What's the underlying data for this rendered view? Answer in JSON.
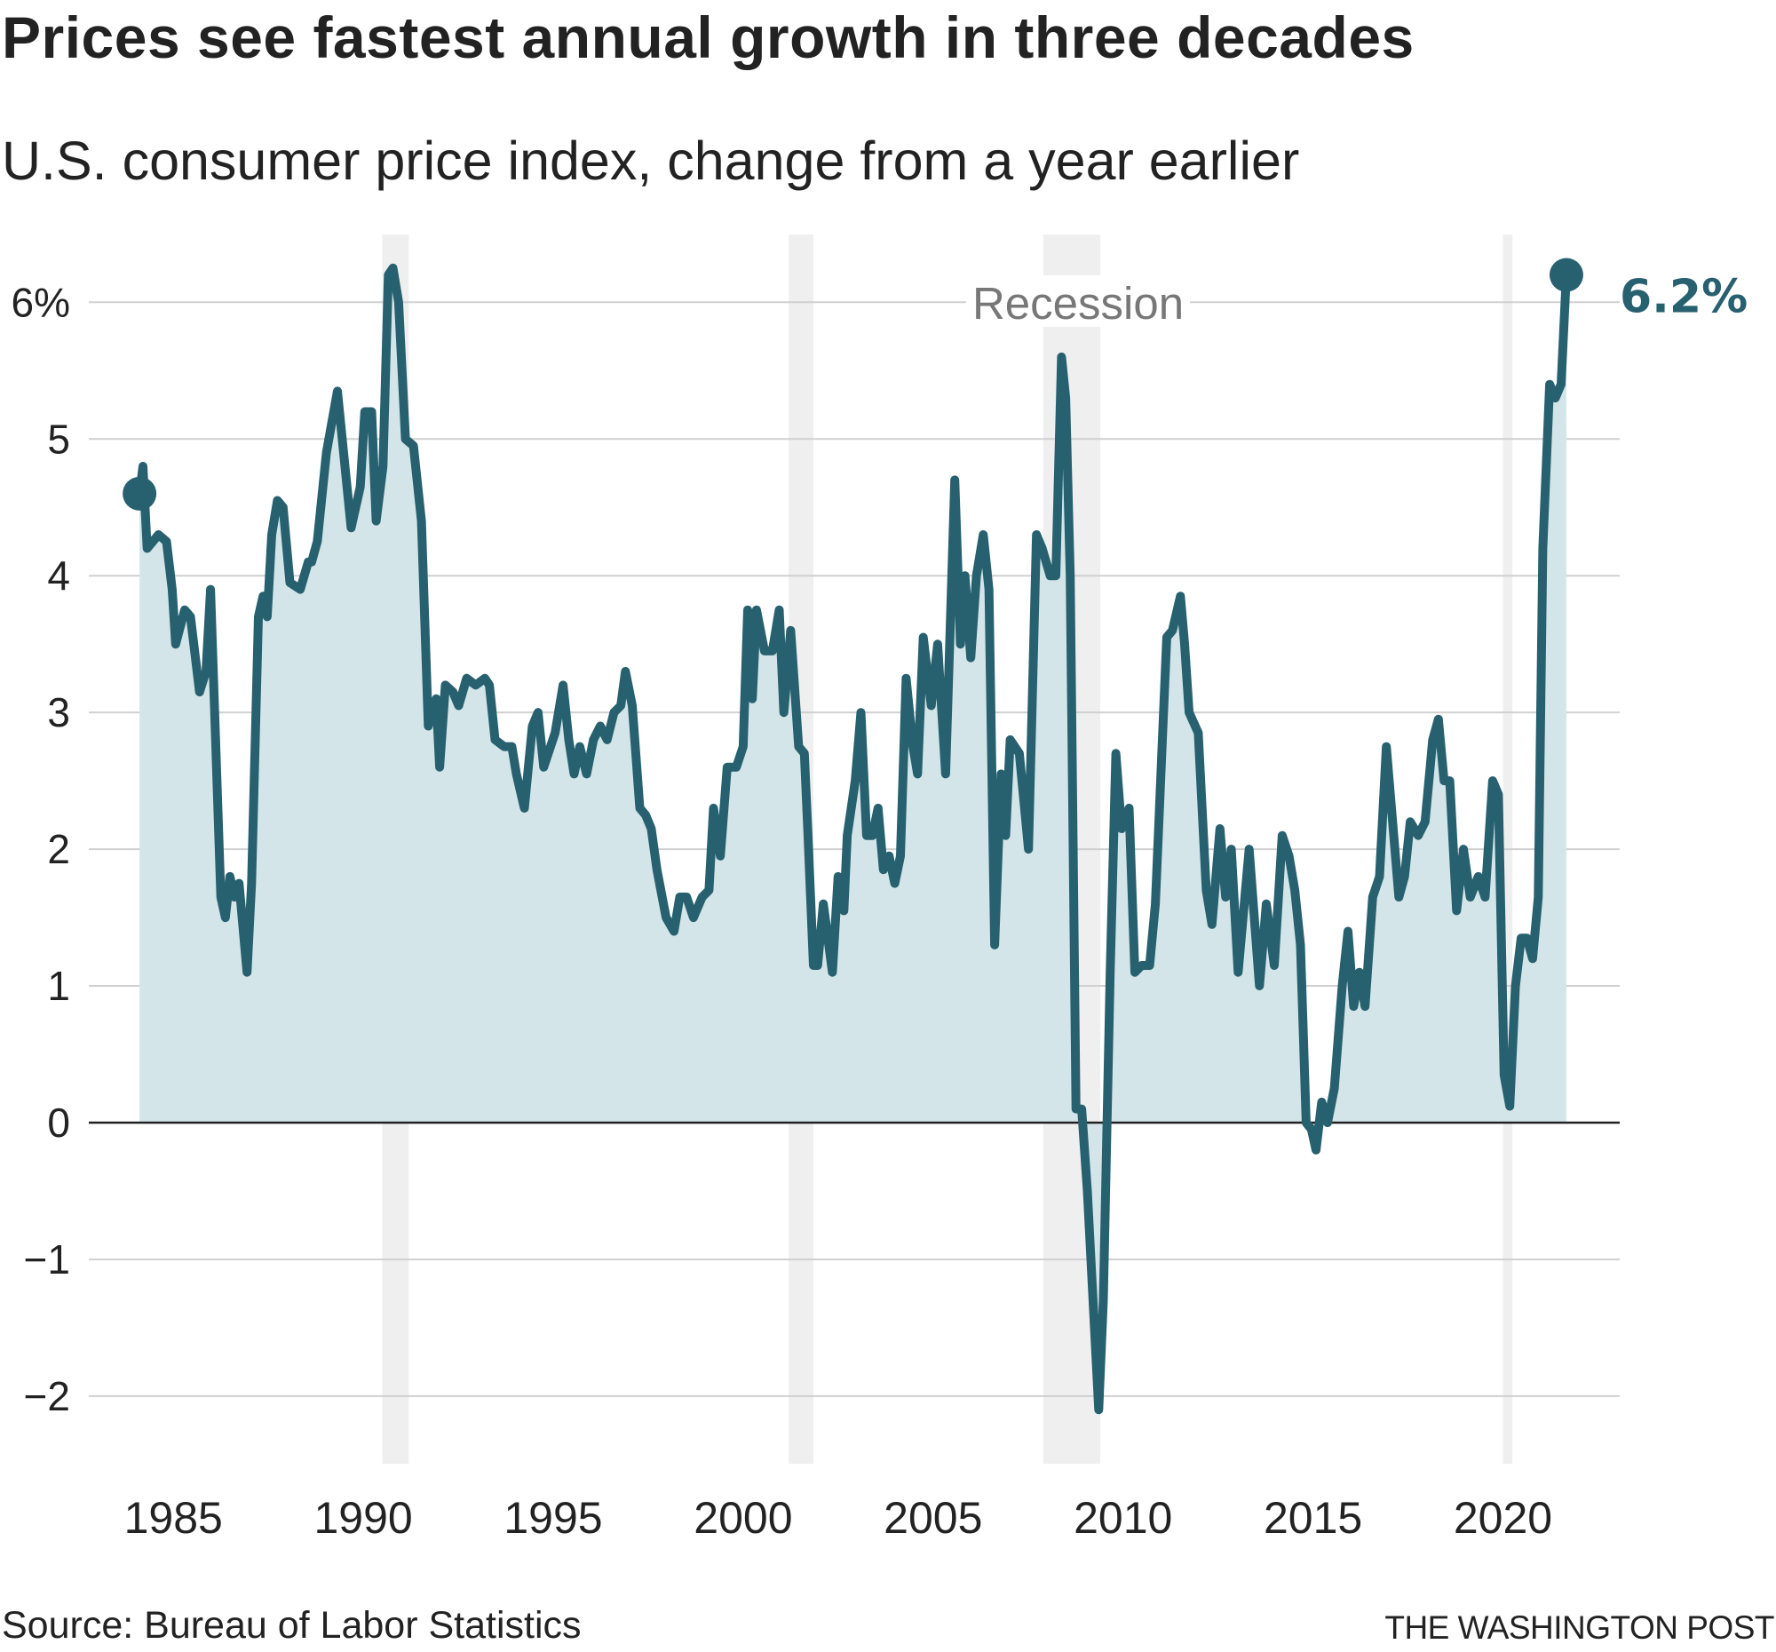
{
  "chart_data": {
    "type": "area",
    "title": "Prices see fastest annual growth in three decades",
    "subtitle": "U.S. consumer price index, change from a year earlier",
    "source": "Source: Bureau of Labor Statistics",
    "credit": "THE WASHINGTON POST",
    "xlim": [
      1984,
      2023
    ],
    "ylim": [
      -2.5,
      6.5
    ],
    "y_ticks": [
      {
        "value": 6,
        "label": "6%"
      },
      {
        "value": 5,
        "label": "5"
      },
      {
        "value": 4,
        "label": "4"
      },
      {
        "value": 3,
        "label": "3"
      },
      {
        "value": 2,
        "label": "2"
      },
      {
        "value": 1,
        "label": "1"
      },
      {
        "value": 0,
        "label": "0"
      },
      {
        "value": -1,
        "label": "−1"
      },
      {
        "value": -2,
        "label": "−2"
      }
    ],
    "x_ticks": [
      {
        "value": 1985,
        "label": "1985"
      },
      {
        "value": 1990,
        "label": "1990"
      },
      {
        "value": 1995,
        "label": "1995"
      },
      {
        "value": 2000,
        "label": "2000"
      },
      {
        "value": 2005,
        "label": "2005"
      },
      {
        "value": 2010,
        "label": "2010"
      },
      {
        "value": 2015,
        "label": "2015"
      },
      {
        "value": 2020,
        "label": "2020"
      }
    ],
    "grid": true,
    "recession_label": "Recession",
    "recessions": [
      [
        1990.5,
        1991.2
      ],
      [
        2001.2,
        2001.85
      ],
      [
        2007.9,
        2009.4
      ],
      [
        2020.0,
        2020.25
      ]
    ],
    "end_label": "6.2%",
    "colors": {
      "line": "#27606f",
      "fill": "#d3e5e8",
      "recession": "#efefef",
      "grid": "#d0d0d0",
      "zero": "#222222",
      "recession_text": "#777777"
    },
    "series": [
      {
        "x": [
          1984.11,
          1984.2,
          1984.31,
          1984.61,
          1984.82,
          1984.97,
          1985.06,
          1985.3,
          1985.45,
          1985.69,
          1985.86,
          1985.98,
          1986.25,
          1986.37,
          1986.49,
          1986.61,
          1986.73,
          1986.94,
          1987.06,
          1987.24,
          1987.36,
          1987.47,
          1987.59,
          1987.74,
          1987.89,
          1988.07,
          1988.34,
          1988.55,
          1988.64,
          1988.79,
          1989.03,
          1989.32,
          1989.68,
          1989.92,
          1990.04,
          1990.22,
          1990.34,
          1990.52,
          1990.66,
          1990.78,
          1990.93,
          1991.11,
          1991.32,
          1991.53,
          1991.71,
          1991.92,
          1992.01,
          1992.16,
          1992.36,
          1992.51,
          1992.72,
          1992.96,
          1993.2,
          1993.32,
          1993.47,
          1993.71,
          1993.91,
          1994.03,
          1994.24,
          1994.45,
          1994.6,
          1994.75,
          1995.05,
          1995.26,
          1995.41,
          1995.55,
          1995.7,
          1995.88,
          1996.06,
          1996.24,
          1996.42,
          1996.6,
          1996.78,
          1996.9,
          1997.08,
          1997.28,
          1997.43,
          1997.58,
          1997.73,
          1997.97,
          1998.18,
          1998.33,
          1998.51,
          1998.69,
          1998.92,
          1999.1,
          1999.22,
          1999.4,
          1999.58,
          1999.82,
          2000.0,
          2000.12,
          2000.24,
          2000.35,
          2000.56,
          2000.77,
          2000.95,
          2001.07,
          2001.25,
          2001.46,
          2001.61,
          2001.7,
          2001.85,
          2001.96,
          2002.11,
          2002.35,
          2002.5,
          2002.65,
          2002.74,
          2002.95,
          2003.1,
          2003.25,
          2003.4,
          2003.55,
          2003.69,
          2003.84,
          2003.99,
          2004.14,
          2004.29,
          2004.47,
          2004.59,
          2004.74,
          2004.95,
          2005.12,
          2005.33,
          2005.57,
          2005.72,
          2005.84,
          2005.99,
          2006.14,
          2006.32,
          2006.47,
          2006.62,
          2006.79,
          2006.91,
          2007.03,
          2007.27,
          2007.51,
          2007.72,
          2007.87,
          2008.08,
          2008.23,
          2008.38,
          2008.49,
          2008.61,
          2008.76,
          2008.91,
          2009.06,
          2009.21,
          2009.36,
          2009.48,
          2009.66,
          2009.81,
          2009.96,
          2010.16,
          2010.31,
          2010.49,
          2010.7,
          2010.85,
          2011.15,
          2011.3,
          2011.51,
          2011.62,
          2011.74,
          2011.98,
          2012.19,
          2012.34,
          2012.55,
          2012.7,
          2012.85,
          2013.03,
          2013.32,
          2013.59,
          2013.77,
          2013.98,
          2014.19,
          2014.37,
          2014.52,
          2014.67,
          2014.82,
          2014.96,
          2015.08,
          2015.23,
          2015.38,
          2015.56,
          2015.77,
          2015.92,
          2016.07,
          2016.22,
          2016.37,
          2016.57,
          2016.75,
          2016.93,
          2017.11,
          2017.26,
          2017.41,
          2017.56,
          2017.77,
          2017.95,
          2018.15,
          2018.3,
          2018.45,
          2018.6,
          2018.78,
          2018.96,
          2019.14,
          2019.35,
          2019.53,
          2019.73,
          2019.88,
          2020.03,
          2020.18,
          2020.33,
          2020.48,
          2020.63,
          2020.78,
          2020.93,
          2021.05,
          2021.23,
          2021.38,
          2021.53,
          2021.67
        ],
        "y": [
          4.6,
          4.8,
          4.2,
          4.3,
          4.25,
          3.9,
          3.5,
          3.75,
          3.7,
          3.15,
          3.3,
          3.9,
          1.65,
          1.5,
          1.8,
          1.65,
          1.75,
          1.1,
          1.75,
          3.7,
          3.85,
          3.7,
          4.3,
          4.55,
          4.5,
          3.95,
          3.9,
          4.1,
          4.1,
          4.25,
          4.9,
          5.35,
          4.35,
          4.65,
          5.2,
          5.2,
          4.4,
          4.8,
          6.2,
          6.25,
          6.0,
          5.0,
          4.95,
          4.4,
          2.9,
          3.1,
          2.6,
          3.2,
          3.15,
          3.05,
          3.25,
          3.2,
          3.25,
          3.2,
          2.8,
          2.75,
          2.75,
          2.55,
          2.3,
          2.9,
          3.0,
          2.6,
          2.85,
          3.2,
          2.8,
          2.55,
          2.75,
          2.55,
          2.8,
          2.9,
          2.8,
          3.0,
          3.05,
          3.3,
          3.05,
          2.3,
          2.25,
          2.15,
          1.85,
          1.5,
          1.4,
          1.65,
          1.65,
          1.5,
          1.65,
          1.7,
          2.3,
          1.95,
          2.6,
          2.6,
          2.75,
          3.75,
          3.1,
          3.75,
          3.45,
          3.45,
          3.75,
          3.0,
          3.6,
          2.75,
          2.7,
          2.15,
          1.15,
          1.15,
          1.6,
          1.1,
          1.8,
          1.55,
          2.1,
          2.5,
          3.0,
          2.1,
          2.1,
          2.3,
          1.85,
          1.95,
          1.75,
          1.95,
          3.25,
          2.75,
          2.55,
          3.55,
          3.05,
          3.5,
          2.55,
          4.7,
          3.5,
          4.0,
          3.4,
          4.0,
          4.3,
          3.9,
          1.3,
          2.55,
          2.1,
          2.8,
          2.7,
          2.0,
          4.3,
          4.2,
          4.0,
          4.0,
          5.6,
          5.3,
          4.0,
          0.1,
          0.1,
          -0.5,
          -1.3,
          -2.1,
          -1.3,
          1.1,
          2.7,
          2.15,
          2.3,
          1.1,
          1.15,
          1.15,
          1.6,
          3.55,
          3.6,
          3.85,
          3.5,
          3.0,
          2.85,
          1.7,
          1.45,
          2.15,
          1.65,
          2.0,
          1.1,
          2.0,
          1.0,
          1.6,
          1.15,
          2.1,
          1.95,
          1.7,
          1.3,
          0.0,
          -0.05,
          -0.2,
          0.15,
          0.0,
          0.25,
          1.0,
          1.4,
          0.85,
          1.1,
          0.85,
          1.65,
          1.8,
          2.75,
          2.15,
          1.65,
          1.8,
          2.2,
          2.1,
          2.2,
          2.8,
          2.95,
          2.5,
          2.5,
          1.55,
          2.0,
          1.65,
          1.8,
          1.65,
          2.5,
          2.4,
          0.35,
          0.12,
          1.0,
          1.35,
          1.35,
          1.2,
          1.65,
          4.2,
          5.4,
          5.3,
          5.4,
          6.2
        ]
      }
    ]
  }
}
